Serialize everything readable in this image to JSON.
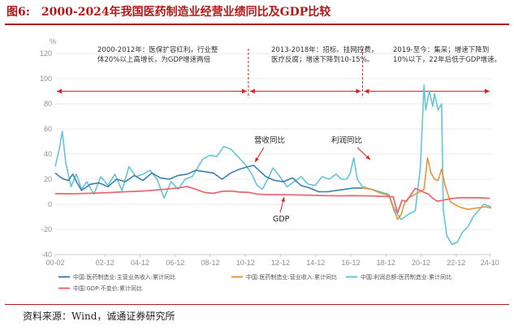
{
  "figure": {
    "number": "图6:",
    "title": "2000-2024年我国医药制造业经营业绩同比及GDP比较",
    "source": "资料来源：Wind，诚通证券研究所",
    "accent_color": "#b01a1a"
  },
  "chart_data": {
    "type": "line",
    "ylabel": "%",
    "ylim": [
      -40,
      120
    ],
    "yticks": [
      "-40",
      "-20",
      "0",
      "20",
      "40",
      "60",
      "80",
      "100",
      "120"
    ],
    "xlim": [
      0,
      24.83
    ],
    "xticks": [
      {
        "x": 0,
        "label": "00-02"
      },
      {
        "x": 2.833,
        "label": "02-12"
      },
      {
        "x": 4.833,
        "label": "04-12"
      },
      {
        "x": 6.833,
        "label": "06-12"
      },
      {
        "x": 8.833,
        "label": "08-12"
      },
      {
        "x": 10.833,
        "label": "10-12"
      },
      {
        "x": 12.833,
        "label": "12-12"
      },
      {
        "x": 14.833,
        "label": "14-12"
      },
      {
        "x": 16.833,
        "label": "16-12"
      },
      {
        "x": 18.833,
        "label": "18-12"
      },
      {
        "x": 20.833,
        "label": "20-12"
      },
      {
        "x": 22.833,
        "label": "22-12"
      },
      {
        "x": 24.75,
        "label": "24-10"
      }
    ],
    "grid": "horizontal",
    "legend_position": "bottom",
    "series": [
      {
        "name": "中国:医药制造业:主营业务收入:累计同比",
        "color": "#3e7fb3",
        "x": [
          0,
          0.25,
          0.5,
          0.75,
          1,
          1.25,
          1.5,
          2,
          2.5,
          3,
          3.5,
          4,
          4.5,
          5,
          5.5,
          6,
          6.5,
          7,
          7.5,
          8,
          8.5,
          9,
          9.5,
          10,
          10.5,
          11,
          11.3,
          11.6,
          12,
          12.5,
          13,
          13.5,
          14,
          14.5,
          15,
          15.5,
          16,
          16.5,
          17,
          17.5
        ],
        "y": [
          25,
          22,
          20,
          19,
          24,
          17,
          11,
          16,
          17,
          14,
          20,
          18,
          23,
          19,
          25,
          21,
          20,
          23,
          24,
          27,
          26,
          25,
          20,
          25,
          28,
          30,
          31,
          27,
          22,
          19,
          18,
          21,
          15,
          13,
          10,
          10,
          11,
          12,
          13,
          13
        ]
      },
      {
        "name": "中国:医药制造业:营业收入:累计同比",
        "color": "#e8953a",
        "x": [
          17.5,
          18,
          18.5,
          19,
          19.3,
          19.5,
          19.7,
          19.9,
          20.1,
          20.5,
          21,
          21.2,
          21.4,
          21.6,
          21.8,
          22,
          22.2,
          22.5,
          23,
          23.5,
          24,
          24.5,
          24.83
        ],
        "y": [
          13,
          12,
          9,
          7,
          -5,
          -12,
          -8,
          1,
          5,
          8,
          12,
          37,
          25,
          20,
          19,
          28,
          15,
          2,
          -2,
          -4,
          -3,
          -2,
          -3
        ]
      },
      {
        "name": "中国:利润总额:医药制造业:累计同比",
        "color": "#64c5d6",
        "x": [
          0,
          0.25,
          0.4,
          0.6,
          0.9,
          1.2,
          1.5,
          1.8,
          2.2,
          2.6,
          3,
          3.4,
          3.8,
          4.2,
          4.6,
          5,
          5.4,
          5.8,
          6.2,
          6.6,
          7,
          7.4,
          7.8,
          8.1,
          8.4,
          8.8,
          9.2,
          9.6,
          10,
          10.4,
          10.8,
          11.2,
          11.5,
          11.8,
          12.1,
          12.4,
          12.8,
          13.2,
          13.6,
          14,
          14.4,
          14.8,
          15.2,
          15.6,
          16,
          16.3,
          16.6,
          16.8,
          17,
          17.2,
          17.5,
          18,
          18.5,
          19,
          19.3,
          19.5,
          19.7,
          19.9,
          20.1,
          20.5,
          20.8,
          21,
          21.1,
          21.3,
          21.5,
          21.6,
          21.8,
          22,
          22.1,
          22.3,
          22.6,
          22.9,
          23.2,
          23.5,
          23.8,
          24.1,
          24.4,
          24.83
        ],
        "y": [
          30,
          45,
          58,
          33,
          14,
          24,
          12,
          18,
          8,
          22,
          15,
          24,
          11,
          30,
          22,
          24,
          27,
          20,
          5,
          18,
          12,
          20,
          22,
          29,
          36,
          39,
          38,
          46,
          44,
          38,
          32,
          24,
          15,
          12,
          20,
          29,
          22,
          14,
          18,
          22,
          16,
          15,
          22,
          20,
          24,
          20,
          20,
          25,
          37,
          20,
          14,
          12,
          10,
          8,
          -3,
          -8,
          -12,
          -10,
          -8,
          -5,
          30,
          95,
          75,
          90,
          78,
          88,
          75,
          80,
          -5,
          -25,
          -32,
          -30,
          -22,
          -18,
          -10,
          -5,
          0,
          -2
        ]
      },
      {
        "name": "中国:GDP:不变价:累计同比",
        "color": "#e86a72",
        "x": [
          0,
          1,
          2,
          3,
          4,
          5,
          6,
          7,
          7.5,
          8,
          8.5,
          9,
          9.5,
          10,
          10.5,
          11,
          11.5,
          12,
          12.5,
          13,
          14,
          15,
          16,
          17,
          18,
          19,
          19.25,
          19.5,
          19.75,
          20,
          20.5,
          21,
          21.25,
          21.5,
          21.75,
          22,
          22.5,
          23,
          23.5,
          24,
          24.5,
          24.75
        ],
        "y": [
          8.5,
          8.4,
          8.8,
          9.3,
          10,
          10.6,
          11.7,
          13,
          14.2,
          12,
          9.5,
          8.7,
          10.3,
          10.6,
          9.8,
          9.5,
          8.1,
          7.8,
          7.7,
          7.7,
          7.4,
          7,
          6.8,
          6.9,
          6.7,
          6.1,
          6,
          -6.8,
          3.2,
          2.3,
          12.7,
          9.6,
          8.1,
          4.8,
          2.5,
          3,
          4.5,
          5.2,
          5.2,
          5.3,
          5,
          4.8
        ]
      }
    ],
    "phases": [
      {
        "label_line1": "2000-2012年：医保扩容红利，行业整",
        "label_line2": "体20%以上高增长，为GDP增速两倍"
      },
      {
        "label_line1": "2013-2018年：招标、挂网控费，",
        "label_line2": "医疗反腐；增速下降到10-15%。"
      },
      {
        "label_line1": "2019-至今：集采；增速下降到",
        "label_line2": "10%以下，22年后低于GDP增速。"
      }
    ],
    "callouts": [
      {
        "text": "营收同比"
      },
      {
        "text": "利润同比"
      },
      {
        "text": "GDP"
      }
    ]
  }
}
